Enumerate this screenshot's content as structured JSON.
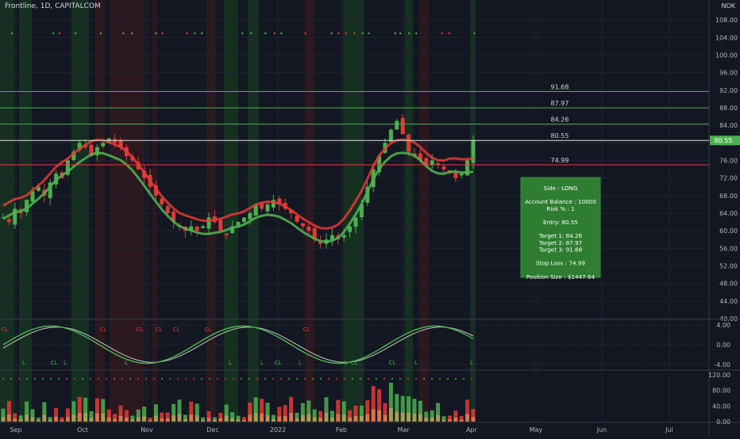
{
  "header": {
    "symbol": "Frontline, 1D, CAPITALCOM",
    "currency": "NOK"
  },
  "colors": {
    "bg": "#131722",
    "bull": "#4caf50",
    "bear": "#e53935",
    "grid": "#1f2330",
    "hline": "#e0e0e0",
    "target": "#4caf50",
    "stop": "#e53935",
    "box": "#2e7d32"
  },
  "chart_data": [
    {
      "type": "candlestick",
      "title": "Frontline, 1D, CAPITALCOM",
      "y_ticks": [
        "108.00",
        "104.00",
        "100.00",
        "96.00",
        "92.00",
        "88.00",
        "84.00",
        "80.00",
        "76.00",
        "72.00",
        "68.00",
        "64.00",
        "60.00",
        "56.00",
        "52.00",
        "48.00",
        "44.00",
        "40.00"
      ],
      "ylim": [
        40,
        110
      ],
      "x_ticks": [
        "Sep",
        "Oct",
        "Nov",
        "Dec",
        "2022",
        "Feb",
        "Mar",
        "Apr",
        "May",
        "Jun",
        "Jul"
      ],
      "close_path": [
        63,
        62,
        65,
        64,
        67,
        69,
        70,
        68,
        71,
        73,
        72,
        76,
        78,
        80,
        79,
        77,
        79,
        80,
        81,
        80,
        79,
        77,
        76,
        74,
        72,
        70,
        68,
        66,
        64,
        62,
        61,
        60,
        61,
        60,
        61,
        63,
        62,
        60,
        59,
        61,
        62,
        63,
        64,
        66,
        65,
        66,
        67,
        66,
        65,
        64,
        62,
        61,
        60,
        58,
        57,
        58,
        59,
        58,
        59,
        61,
        63,
        66,
        70,
        74,
        77,
        80,
        83,
        85,
        82,
        78,
        77,
        76,
        75,
        76,
        75,
        74,
        73,
        72,
        73,
        76,
        80.55
      ],
      "horizontal_levels": [
        {
          "label": "91.68",
          "value": 91.68,
          "kind": "target"
        },
        {
          "label": "87.97",
          "value": 87.97,
          "kind": "target"
        },
        {
          "label": "84.26",
          "value": 84.26,
          "kind": "target"
        },
        {
          "label": "80.55",
          "value": 80.55,
          "kind": "entry"
        },
        {
          "label": "74.99",
          "value": 74.99,
          "kind": "stop"
        }
      ],
      "last_price_label": "80.55"
    },
    {
      "type": "line",
      "title": "",
      "y_ticks": [
        "4.00",
        "0.00",
        "-4.00"
      ],
      "ylim": [
        -5,
        5
      ],
      "signal_labels_top": [
        "CL",
        "CL",
        "CL",
        "CL",
        "CL",
        "CL",
        "CL"
      ],
      "signal_labels_bottom": [
        "L",
        "CL",
        "L",
        "L",
        "L",
        "L",
        "CL",
        "L",
        "L",
        "CL",
        "CL",
        "L",
        "L"
      ]
    },
    {
      "type": "bar",
      "title": "",
      "y_ticks": [
        "120.00",
        "80.00",
        "40.00",
        "0.00"
      ],
      "ylim": [
        0,
        130
      ]
    }
  ],
  "info_box": {
    "lines": [
      "Side : LONG",
      "",
      "Account Balance : 10000",
      "Risk % : 1",
      "",
      "Entry: 80.55",
      "",
      "Target 1: 84.26",
      "Target 2: 87.97",
      "Target 3: 91.68",
      "",
      "Stop Loss : 74.99",
      "",
      "Position Size : $1447.64"
    ]
  }
}
